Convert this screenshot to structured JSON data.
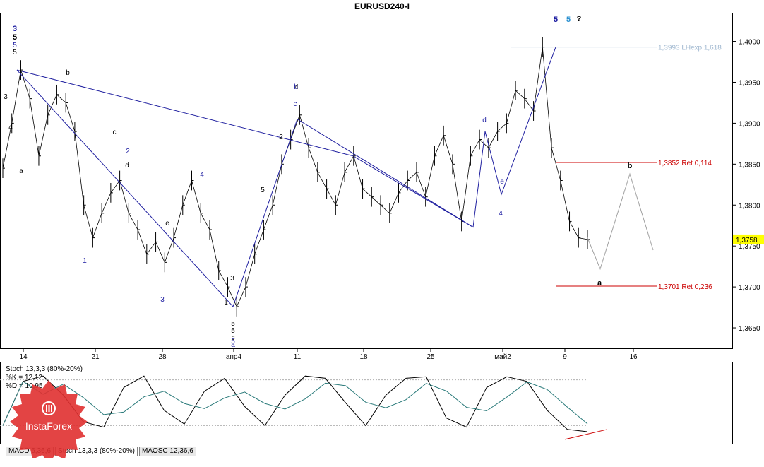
{
  "window_title": "EURUSD240-I",
  "price_axis_ticks": [
    "1,4000",
    "1,3950",
    "1,3900",
    "1,3850",
    "1,3800",
    "1,3750",
    "1,3700",
    "1,3650"
  ],
  "current_price": "1,3758",
  "date_axis_ticks": [
    "14",
    "21",
    "28",
    "апр4",
    "11",
    "18",
    "25",
    "май2",
    "9",
    "16"
  ],
  "levels": [
    {
      "label": "1,3993 LНехр 1,618",
      "price": 1.3993,
      "color": "#a0b8d0"
    },
    {
      "label": "1,3852 Ret 0,114",
      "price": 1.3852,
      "color": "#cc0000"
    },
    {
      "label": "1,3701 Ret 0,236",
      "price": 1.3701,
      "color": "#cc0000"
    }
  ],
  "wave_marks": {
    "top_left": [
      "3",
      "5",
      "5",
      "5"
    ],
    "top_right_blue": "5",
    "top_right_light": "5",
    "question": "?",
    "projection_b": "b",
    "projection_a": "a",
    "april_bottom": [
      "5",
      "5",
      "c",
      "a"
    ],
    "labels_black": [
      "3",
      "4",
      "a",
      "b",
      "c",
      "d",
      "e",
      "1",
      "2",
      "3",
      "4",
      "5"
    ],
    "labels_blue": [
      "1",
      "2",
      "3",
      "4",
      "5",
      "b",
      "c",
      "d",
      "e",
      "4"
    ]
  },
  "indicator": {
    "name": "Stoch 13,3,3 (80%-20%)",
    "k": "%K = 12,12",
    "d": "%D = 10,95"
  },
  "tabs": [
    "MACD 6,36,6",
    "Stoch 13,3,3 (80%-20%)",
    "MAOSC 12,36,6"
  ],
  "logo_text": "InstaForex",
  "colors": {
    "up_line": "#0000aa",
    "red_level": "#cc0000",
    "light_level": "#a0b8d0",
    "grid": "#c8c8c8",
    "logo": "#e03030"
  },
  "chart_data": {
    "type": "line",
    "title": "EURUSD240-I",
    "ylim": [
      1.3625,
      1.4035
    ],
    "y_ticks": [
      1.4,
      1.395,
      1.39,
      1.385,
      1.38,
      1.375,
      1.37,
      1.365
    ],
    "x_ticks": [
      "14",
      "21",
      "28",
      "апр4",
      "11",
      "18",
      "25",
      "май2",
      "9",
      "16"
    ],
    "series": [
      {
        "values": [
          1.3845,
          1.39,
          1.3965,
          1.393,
          1.386,
          1.391,
          1.3935,
          1.3925,
          1.389,
          1.38,
          1.376,
          1.379,
          1.3815,
          1.383,
          1.379,
          1.377,
          1.374,
          1.3755,
          1.373,
          1.376,
          1.38,
          1.383,
          1.379,
          1.377,
          1.372,
          1.37,
          1.3676,
          1.37,
          1.374,
          1.377,
          1.38,
          1.385,
          1.388,
          1.391,
          1.387,
          1.384,
          1.382,
          1.38,
          1.384,
          1.386,
          1.382,
          1.381,
          1.38,
          1.379,
          1.3815,
          1.383,
          1.384,
          1.381,
          1.386,
          1.3885,
          1.385,
          1.378,
          1.386,
          1.388,
          1.387,
          1.389,
          1.39,
          1.394,
          1.393,
          1.3915,
          1.3993,
          1.387,
          1.383,
          1.378,
          1.376,
          1.3758
        ]
      },
      {
        "name": "%K",
        "values": [
          20,
          78,
          85,
          60,
          25,
          18,
          70,
          85,
          40,
          22,
          65,
          82,
          45,
          20,
          60,
          85,
          82,
          50,
          20,
          60,
          82,
          84,
          30,
          18,
          70,
          84,
          78,
          40,
          15,
          12
        ]
      }
    ],
    "levels": [
      1.3993,
      1.3852,
      1.3701
    ],
    "stoch_bands": [
      80,
      20
    ]
  }
}
